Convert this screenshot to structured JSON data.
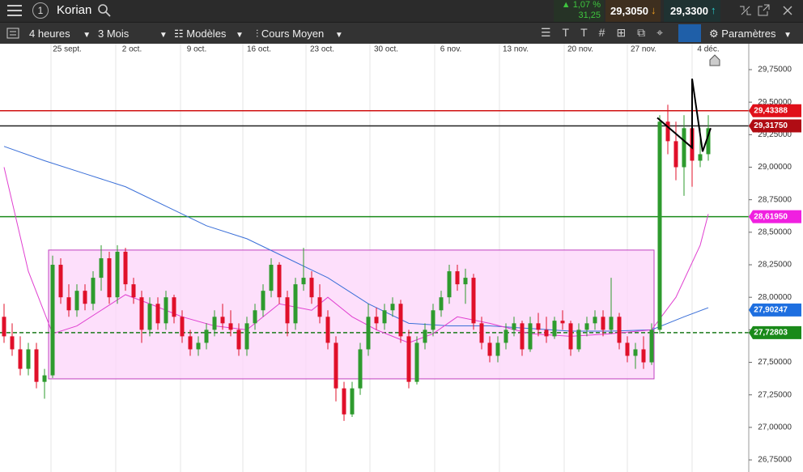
{
  "header": {
    "instrument_number": "1",
    "title": "Korian",
    "change_pct": "1,07 %",
    "change": "31,25",
    "bid": "29,3050",
    "ask": "29,3300"
  },
  "toolbar": {
    "interval": "4 heures",
    "period": "3 Mois",
    "templates": "Modèles",
    "price_type": "Cours Moyen",
    "settings": "Paramètres"
  },
  "chart_data": {
    "type": "candlestick",
    "xlim": [
      -0.5,
      92
    ],
    "ylim": [
      26.657,
      29.862
    ],
    "xticks": [
      {
        "value": 5.8,
        "label": "25 sept."
      },
      {
        "value": 13.8,
        "label": "2 oct."
      },
      {
        "value": 21.8,
        "label": "9 oct."
      },
      {
        "value": 29.5,
        "label": "16 oct."
      },
      {
        "value": 37.3,
        "label": "23 oct."
      },
      {
        "value": 45.2,
        "label": "30 oct."
      },
      {
        "value": 53.2,
        "label": "6 nov."
      },
      {
        "value": 61.2,
        "label": "13 nov."
      },
      {
        "value": 69.2,
        "label": "20 nov."
      },
      {
        "value": 77,
        "label": "27 nov."
      },
      {
        "value": 85,
        "label": "4 déc."
      }
    ],
    "yticks": [
      {
        "value": 29.75,
        "label": "29,75000"
      },
      {
        "value": 29.5,
        "label": "29,50000"
      },
      {
        "value": 29.25,
        "label": "29,25000"
      },
      {
        "value": 29,
        "label": "29,00000"
      },
      {
        "value": 28.75,
        "label": "28,75000"
      },
      {
        "value": 28.5,
        "label": "28,50000"
      },
      {
        "value": 28.25,
        "label": "28,25000"
      },
      {
        "value": 28,
        "label": "28,00000"
      },
      {
        "value": 27.75,
        "label": "27,75000"
      },
      {
        "value": 27.5,
        "label": "27,50000"
      },
      {
        "value": 27.25,
        "label": "27,25000"
      },
      {
        "value": 27,
        "label": "27,00000"
      },
      {
        "value": 26.75,
        "label": "26,75000"
      }
    ],
    "up_color": "#2e9b2e",
    "down_color": "#e0102a",
    "candles": [
      [
        27.85,
        27.95,
        27.65,
        27.7
      ],
      [
        27.7,
        27.8,
        27.55,
        27.6
      ],
      [
        27.6,
        27.7,
        27.4,
        27.45
      ],
      [
        27.45,
        27.65,
        27.4,
        27.6
      ],
      [
        27.6,
        27.65,
        27.3,
        27.35
      ],
      [
        27.35,
        27.45,
        27.22,
        27.4
      ],
      [
        27.4,
        28.32,
        27.38,
        28.25
      ],
      [
        28.25,
        28.3,
        27.95,
        28.0
      ],
      [
        28.0,
        28.1,
        27.85,
        27.9
      ],
      [
        27.9,
        28.1,
        27.85,
        28.05
      ],
      [
        28.05,
        28.1,
        27.9,
        27.95
      ],
      [
        27.95,
        28.2,
        27.9,
        28.15
      ],
      [
        28.15,
        28.4,
        28.05,
        28.3
      ],
      [
        28.3,
        28.35,
        27.95,
        28.0
      ],
      [
        28.0,
        28.4,
        27.95,
        28.35
      ],
      [
        28.35,
        28.38,
        28.05,
        28.1
      ],
      [
        28.1,
        28.15,
        27.95,
        28.0
      ],
      [
        28.0,
        28.05,
        27.65,
        27.75
      ],
      [
        27.75,
        28.0,
        27.7,
        27.95
      ],
      [
        27.95,
        28.0,
        27.75,
        27.8
      ],
      [
        27.8,
        28.05,
        27.75,
        28.0
      ],
      [
        28.0,
        28.02,
        27.8,
        27.85
      ],
      [
        27.85,
        27.9,
        27.65,
        27.7
      ],
      [
        27.7,
        27.75,
        27.55,
        27.6
      ],
      [
        27.6,
        27.7,
        27.55,
        27.65
      ],
      [
        27.65,
        27.8,
        27.6,
        27.75
      ],
      [
        27.75,
        27.9,
        27.7,
        27.85
      ],
      [
        27.85,
        27.95,
        27.75,
        27.8
      ],
      [
        27.8,
        27.9,
        27.7,
        27.75
      ],
      [
        27.75,
        27.8,
        27.55,
        27.6
      ],
      [
        27.6,
        27.85,
        27.55,
        27.8
      ],
      [
        27.8,
        27.95,
        27.75,
        27.9
      ],
      [
        27.9,
        28.1,
        27.85,
        28.05
      ],
      [
        28.05,
        28.3,
        28.0,
        28.25
      ],
      [
        28.25,
        28.27,
        27.95,
        28.0
      ],
      [
        28.0,
        28.05,
        27.7,
        27.8
      ],
      [
        27.8,
        28.15,
        27.75,
        28.1
      ],
      [
        28.1,
        28.38,
        28.05,
        28.15
      ],
      [
        28.15,
        28.2,
        27.95,
        28.0
      ],
      [
        28.0,
        28.1,
        27.8,
        27.85
      ],
      [
        27.85,
        27.9,
        27.6,
        27.65
      ],
      [
        27.65,
        27.7,
        27.2,
        27.3
      ],
      [
        27.3,
        27.35,
        27.05,
        27.1
      ],
      [
        27.1,
        27.35,
        27.08,
        27.3
      ],
      [
        27.3,
        27.65,
        27.25,
        27.6
      ],
      [
        27.6,
        27.95,
        27.55,
        27.85
      ],
      [
        27.85,
        27.92,
        27.75,
        27.8
      ],
      [
        27.8,
        27.95,
        27.75,
        27.9
      ],
      [
        27.9,
        28.0,
        27.85,
        27.95
      ],
      [
        27.95,
        27.98,
        27.65,
        27.7
      ],
      [
        27.7,
        27.75,
        27.3,
        27.35
      ],
      [
        27.35,
        27.7,
        27.33,
        27.65
      ],
      [
        27.65,
        27.8,
        27.6,
        27.75
      ],
      [
        27.75,
        27.95,
        27.7,
        27.9
      ],
      [
        27.9,
        28.05,
        27.85,
        28.0
      ],
      [
        28.0,
        28.25,
        27.95,
        28.2
      ],
      [
        28.2,
        28.25,
        28.05,
        28.1
      ],
      [
        28.1,
        28.22,
        27.95,
        28.15
      ],
      [
        28.15,
        28.18,
        27.75,
        27.8
      ],
      [
        27.8,
        27.85,
        27.6,
        27.65
      ],
      [
        27.65,
        27.7,
        27.5,
        27.55
      ],
      [
        27.55,
        27.7,
        27.5,
        27.65
      ],
      [
        27.65,
        27.8,
        27.6,
        27.75
      ],
      [
        27.75,
        27.85,
        27.7,
        27.8
      ],
      [
        27.8,
        27.82,
        27.55,
        27.6
      ],
      [
        27.6,
        27.85,
        27.58,
        27.8
      ],
      [
        27.8,
        27.88,
        27.7,
        27.75
      ],
      [
        27.75,
        27.85,
        27.65,
        27.7
      ],
      [
        27.7,
        27.85,
        27.68,
        27.82
      ],
      [
        27.82,
        27.9,
        27.75,
        27.8
      ],
      [
        27.8,
        27.82,
        27.55,
        27.6
      ],
      [
        27.6,
        27.8,
        27.58,
        27.75
      ],
      [
        27.75,
        27.85,
        27.7,
        27.8
      ],
      [
        27.8,
        27.9,
        27.75,
        27.85
      ],
      [
        27.85,
        27.9,
        27.7,
        27.75
      ],
      [
        27.75,
        28.15,
        27.72,
        27.85
      ],
      [
        27.85,
        27.88,
        27.6,
        27.65
      ],
      [
        27.65,
        27.7,
        27.5,
        27.55
      ],
      [
        27.55,
        27.65,
        27.45,
        27.6
      ],
      [
        27.6,
        27.7,
        27.45,
        27.5
      ],
      [
        27.5,
        27.8,
        27.48,
        27.75
      ],
      [
        27.75,
        29.4,
        27.72,
        29.35
      ],
      [
        29.35,
        29.48,
        29.1,
        29.2
      ],
      [
        29.2,
        29.35,
        28.9,
        29.0
      ],
      [
        29.0,
        29.4,
        28.78,
        29.3
      ],
      [
        29.3,
        29.45,
        28.85,
        29.05
      ],
      [
        29.05,
        29.3,
        29.0,
        29.1
      ],
      [
        29.1,
        29.4,
        29.05,
        29.3
      ]
    ],
    "moving_averages": [
      {
        "color": "#3a6fd8",
        "x": [
          0,
          5,
          10,
          15,
          20,
          25,
          30,
          35,
          40,
          45,
          50,
          55,
          60,
          65,
          70,
          75,
          80,
          84,
          87
        ],
        "values": [
          29.16,
          29.05,
          28.95,
          28.85,
          28.7,
          28.55,
          28.45,
          28.3,
          28.15,
          27.95,
          27.8,
          27.78,
          27.78,
          27.76,
          27.74,
          27.74,
          27.75,
          27.85,
          27.92
        ]
      },
      {
        "color": "#e040d0",
        "x": [
          0,
          3,
          6,
          9,
          12,
          15,
          18,
          22,
          26,
          30,
          34,
          38,
          40,
          43,
          46,
          50,
          53,
          56,
          60,
          65,
          70,
          75,
          80,
          83,
          86,
          87
        ],
        "values": [
          29.0,
          28.2,
          27.72,
          27.78,
          27.9,
          28.02,
          27.95,
          27.85,
          27.78,
          27.75,
          27.95,
          27.9,
          28.0,
          27.85,
          27.75,
          27.65,
          27.72,
          27.85,
          27.8,
          27.72,
          27.7,
          27.72,
          27.75,
          28.0,
          28.4,
          28.64
        ]
      }
    ],
    "levels": [
      {
        "value": 29.43388,
        "label": "29,43388",
        "color": "#d01010",
        "badge": "#e0101a",
        "dash": false
      },
      {
        "value": 29.3175,
        "label": "29,31750",
        "color": "#222222",
        "badge": "#b00c14",
        "dash": false
      },
      {
        "value": 28.6195,
        "label": "28,61950",
        "color": "#1a8a1a",
        "badge": "#f020e0",
        "dash": false
      },
      {
        "value": 27.90247,
        "label": "27,90247",
        "color": "none",
        "badge": "#1e6fe0",
        "dash": false
      },
      {
        "value": 27.72803,
        "label": "27,72803",
        "color": "#1a7a1a",
        "badge": "#1a8a1a",
        "dash": true
      }
    ],
    "box": {
      "x": [
        5.5,
        80.3
      ],
      "y": [
        27.373,
        28.363
      ],
      "fill": "#fcd4fa",
      "stroke": "#c040c0"
    },
    "trend": {
      "x": [
        80.7,
        85,
        85,
        86.3,
        87.3
      ],
      "y": [
        29.38,
        29.15,
        29.68,
        29.12,
        29.3
      ],
      "color": "#000000"
    }
  }
}
